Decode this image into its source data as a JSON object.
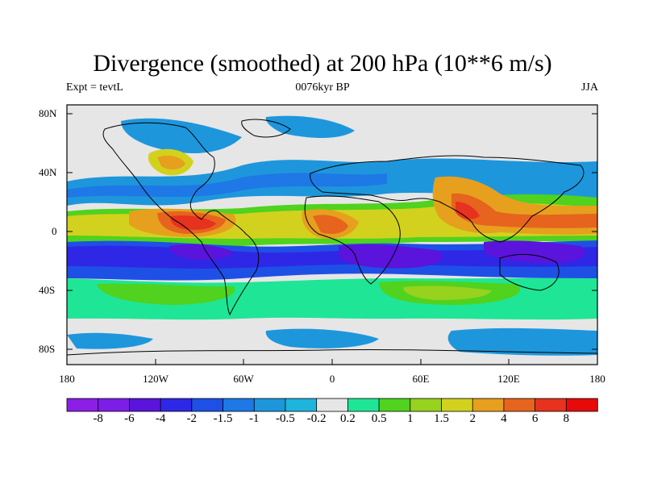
{
  "title": "Divergence (smoothed) at 200 hPa (10**6 m/s)",
  "subtitle_left": "Expt = tevtL",
  "subtitle_center": "0076kyr BP",
  "subtitle_right": "JJA",
  "lat_labels": [
    "80N",
    "40N",
    "0",
    "40S",
    "80S"
  ],
  "lon_labels": [
    "180",
    "120W",
    "60W",
    "0",
    "60E",
    "120E",
    "180"
  ],
  "colorbar": {
    "colors": [
      "#8c1ee6",
      "#7d1ee6",
      "#5a14dc",
      "#2e28e6",
      "#1e50e6",
      "#1e78e6",
      "#1e96dc",
      "#1eb4dc",
      "#e6e6e6",
      "#1ee696",
      "#50d21e",
      "#96d21e",
      "#d2d21e",
      "#e6a01e",
      "#e6641e",
      "#e6321e",
      "#e60a0a"
    ],
    "labels": [
      "-8",
      "-6",
      "-4",
      "-2",
      "-1.5",
      "-1",
      "-0.5",
      "-0.2",
      "0.2",
      "0.5",
      "1",
      "1.5",
      "2",
      "4",
      "6",
      "8"
    ]
  }
}
